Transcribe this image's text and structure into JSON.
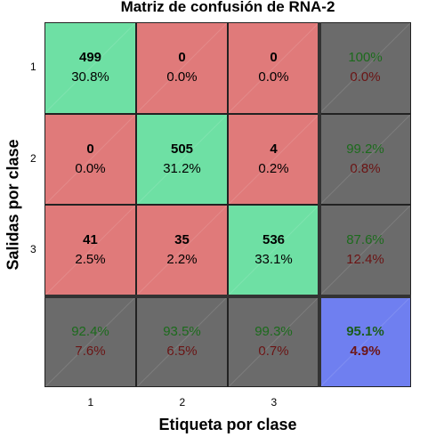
{
  "chart_data": {
    "type": "heatmap",
    "title": "Matriz de confusión de RNA-2",
    "xlabel": "Etiqueta por clase",
    "ylabel": "Salidas por clase",
    "x_ticks": [
      "1",
      "2",
      "3"
    ],
    "y_ticks": [
      "1",
      "2",
      "3"
    ],
    "matrix": [
      [
        {
          "count": "499",
          "pct": "30.8%"
        },
        {
          "count": "0",
          "pct": "0.0%"
        },
        {
          "count": "0",
          "pct": "0.0%"
        }
      ],
      [
        {
          "count": "0",
          "pct": "0.0%"
        },
        {
          "count": "505",
          "pct": "31.2%"
        },
        {
          "count": "4",
          "pct": "0.2%"
        }
      ],
      [
        {
          "count": "41",
          "pct": "2.5%"
        },
        {
          "count": "35",
          "pct": "2.2%"
        },
        {
          "count": "536",
          "pct": "33.1%"
        }
      ]
    ],
    "row_summary": [
      {
        "correct": "100%",
        "error": "0.0%"
      },
      {
        "correct": "99.2%",
        "error": "0.8%"
      },
      {
        "correct": "87.6%",
        "error": "12.4%"
      }
    ],
    "col_summary": [
      {
        "correct": "92.4%",
        "error": "7.6%"
      },
      {
        "correct": "93.5%",
        "error": "6.5%"
      },
      {
        "correct": "99.3%",
        "error": "0.7%"
      }
    ],
    "overall": {
      "correct": "95.1%",
      "error": "4.9%"
    },
    "colors": {
      "correct_cell": "#6ee0a4",
      "incorrect_cell": "#e07a7a",
      "summary_cell": "#6b6b6b",
      "overall_cell": "#6f7ff0"
    }
  }
}
